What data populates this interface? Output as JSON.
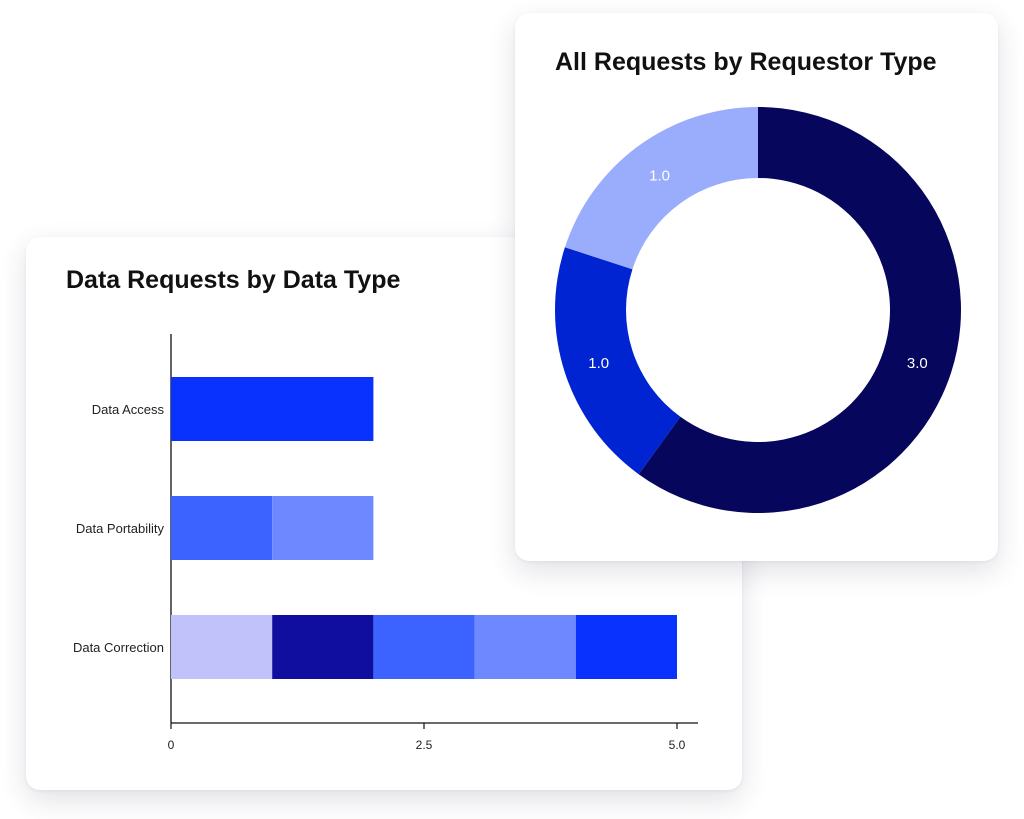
{
  "bar_card": {
    "title": "Data Requests by Data Type"
  },
  "donut_card": {
    "title": "All Requests by Requestor Type"
  },
  "chart_data": [
    {
      "type": "bar",
      "orientation": "horizontal",
      "stacked": true,
      "title": "Data Requests by Data Type",
      "categories": [
        "Data Access",
        "Data Portability",
        "Data Correction"
      ],
      "segments": [
        [
          {
            "value": 2,
            "color": "#0a32ff"
          }
        ],
        [
          {
            "value": 1,
            "color": "#3c63ff"
          },
          {
            "value": 1,
            "color": "#6e89ff"
          }
        ],
        [
          {
            "value": 1,
            "color": "#c2c2fa"
          },
          {
            "value": 1,
            "color": "#0f0e9e"
          },
          {
            "value": 1,
            "color": "#3c63ff"
          },
          {
            "value": 1,
            "color": "#6e89ff"
          },
          {
            "value": 1,
            "color": "#0a32ff"
          }
        ]
      ],
      "xlim": [
        0,
        5
      ],
      "xticks": [
        "0",
        "2.5",
        "5.0"
      ],
      "xlabel": "",
      "ylabel": "",
      "grid": false
    },
    {
      "type": "pie",
      "donut": true,
      "title": "All Requests by Requestor Type",
      "slices": [
        {
          "value": 3.0,
          "label": "3.0",
          "color": "#06065c"
        },
        {
          "value": 1.0,
          "label": "1.0",
          "color": "#0124d2"
        },
        {
          "value": 1.0,
          "label": "1.0",
          "color": "#9aadfd"
        }
      ]
    }
  ]
}
